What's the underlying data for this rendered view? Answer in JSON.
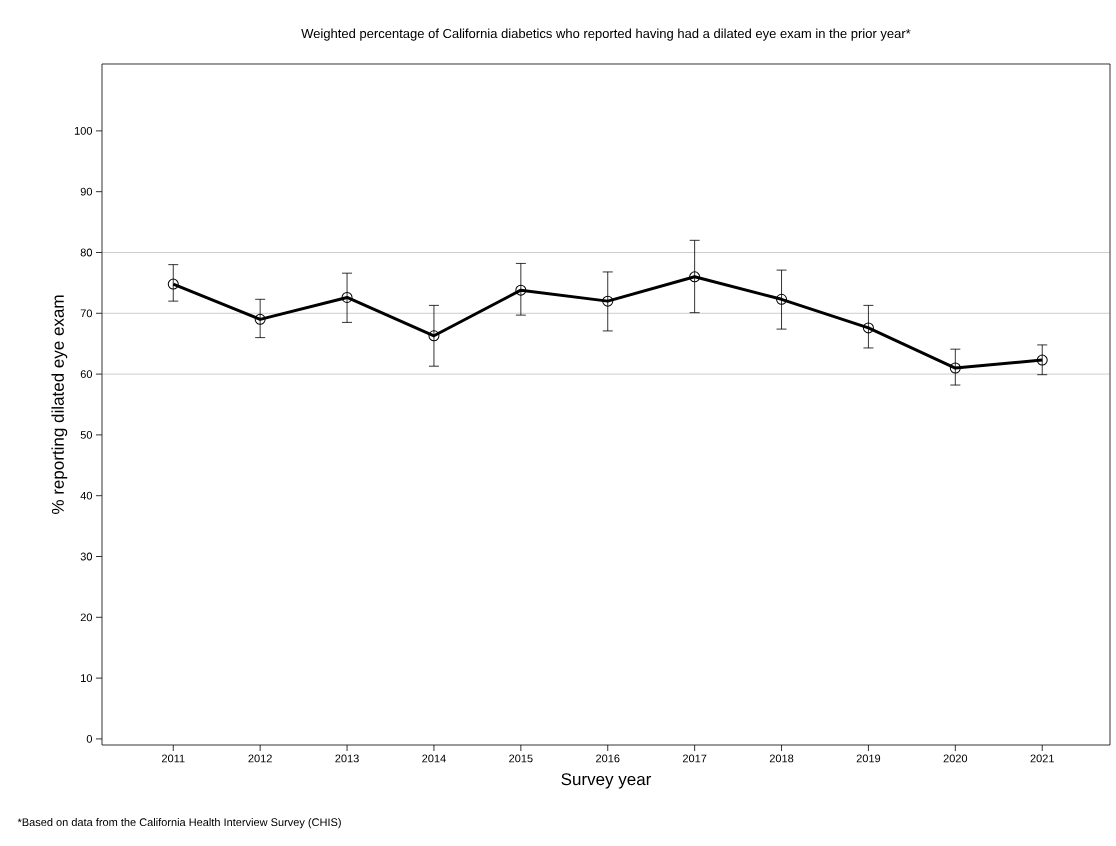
{
  "chart_data": {
    "type": "line",
    "title": "Weighted percentage of California diabetics who reported having had a dilated eye exam in the prior year*",
    "xlabel": "Survey year",
    "ylabel": "% reporting dilated eye exam",
    "categories": [
      "2011",
      "2012",
      "2013",
      "2014",
      "2015",
      "2016",
      "2017",
      "2018",
      "2019",
      "2020",
      "2021"
    ],
    "series": [
      {
        "color": "#000000",
        "values": [
          74.8,
          69.0,
          72.6,
          66.3,
          73.8,
          72.0,
          76.0,
          72.3,
          67.6,
          61.0,
          62.3
        ],
        "errors": [
          [
            72.0,
            78.0
          ],
          [
            66.0,
            72.3
          ],
          [
            68.5,
            76.6
          ],
          [
            61.3,
            71.3
          ],
          [
            69.7,
            78.2
          ],
          [
            67.1,
            76.8
          ],
          [
            70.1,
            82.0
          ],
          [
            67.4,
            77.1
          ],
          [
            64.3,
            71.3
          ],
          [
            58.2,
            64.1
          ],
          [
            59.9,
            64.8
          ]
        ]
      }
    ],
    "ylim": [
      -1,
      111
    ],
    "yticks": [
      0,
      10,
      20,
      30,
      40,
      50,
      60,
      70,
      80,
      90,
      100
    ],
    "ref_lines": [
      {
        "axis": "y",
        "value": 60,
        "color": "#808080"
      },
      {
        "axis": "y",
        "value": 70,
        "color": "#808080"
      },
      {
        "axis": "y",
        "value": 80,
        "color": "#808080"
      }
    ],
    "marker": "circle",
    "line_style": "solid",
    "grid": false,
    "annotations": [
      "*Based on data from the California Health Interview Survey (CHIS)"
    ]
  }
}
